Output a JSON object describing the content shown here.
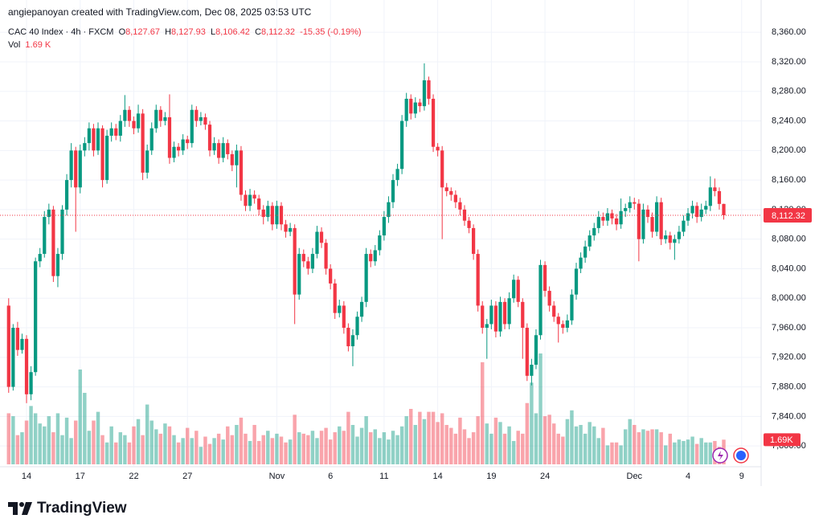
{
  "attribution": "angiepanoyan created with TradingView.com, Dec 08, 2025 03:53 UTC",
  "chart_data": {
    "type": "candlestick",
    "title": "CAC 40 Index · 4h · FXCM",
    "legend": {
      "open_key": "O",
      "open": "8,127.67",
      "high_key": "H",
      "high": "8,127.93",
      "low_key": "L",
      "low": "8,106.42",
      "close_key": "C",
      "close": "8,112.32",
      "change": "-15.35 (-0.19%)",
      "volume_key": "Vol",
      "volume": "1.69 K"
    },
    "up_color": "#089981",
    "down_color": "#f23645",
    "ohlc": [
      [
        7990,
        8000,
        7872,
        7880
      ],
      [
        7880,
        7965,
        7875,
        7960
      ],
      [
        7960,
        7968,
        7922,
        7930
      ],
      [
        7930,
        7952,
        7925,
        7945
      ],
      [
        7945,
        7950,
        7858,
        7870
      ],
      [
        7870,
        7908,
        7862,
        7900
      ],
      [
        7900,
        8055,
        7895,
        8050
      ],
      [
        8050,
        8068,
        8042,
        8060
      ],
      [
        8060,
        8118,
        8055,
        8110
      ],
      [
        8110,
        8128,
        8100,
        8120
      ],
      [
        8120,
        8125,
        8022,
        8030
      ],
      [
        8030,
        8068,
        8015,
        8060
      ],
      [
        8060,
        8126,
        8052,
        8120
      ],
      [
        8120,
        8168,
        8112,
        8160
      ],
      [
        8160,
        8210,
        8150,
        8200
      ],
      [
        8200,
        8205,
        8090,
        8150
      ],
      [
        8150,
        8208,
        8142,
        8200
      ],
      [
        8200,
        8218,
        8192,
        8210
      ],
      [
        8210,
        8238,
        8200,
        8230
      ],
      [
        8230,
        8236,
        8192,
        8200
      ],
      [
        8200,
        8238,
        8194,
        8230
      ],
      [
        8230,
        8234,
        8150,
        8160
      ],
      [
        8160,
        8228,
        8155,
        8220
      ],
      [
        8220,
        8238,
        8212,
        8230
      ],
      [
        8230,
        8236,
        8214,
        8220
      ],
      [
        8220,
        8248,
        8212,
        8240
      ],
      [
        8240,
        8275,
        8232,
        8255
      ],
      [
        8255,
        8260,
        8232,
        8240
      ],
      [
        8240,
        8246,
        8222,
        8230
      ],
      [
        8230,
        8262,
        8224,
        8250
      ],
      [
        8250,
        8256,
        8160,
        8170
      ],
      [
        8170,
        8208,
        8162,
        8200
      ],
      [
        8200,
        8238,
        8194,
        8230
      ],
      [
        8230,
        8262,
        8224,
        8255
      ],
      [
        8255,
        8260,
        8232,
        8240
      ],
      [
        8240,
        8252,
        8234,
        8245
      ],
      [
        8245,
        8276,
        8182,
        8190
      ],
      [
        8190,
        8212,
        8184,
        8205
      ],
      [
        8205,
        8210,
        8192,
        8200
      ],
      [
        8200,
        8222,
        8194,
        8215
      ],
      [
        8215,
        8220,
        8202,
        8210
      ],
      [
        8210,
        8262,
        8204,
        8255
      ],
      [
        8255,
        8260,
        8232,
        8240
      ],
      [
        8240,
        8252,
        8234,
        8245
      ],
      [
        8245,
        8250,
        8228,
        8235
      ],
      [
        8235,
        8240,
        8192,
        8200
      ],
      [
        8200,
        8218,
        8194,
        8210
      ],
      [
        8210,
        8215,
        8182,
        8190
      ],
      [
        8190,
        8218,
        8184,
        8210
      ],
      [
        8210,
        8215,
        8188,
        8195
      ],
      [
        8195,
        8200,
        8172,
        8180
      ],
      [
        8180,
        8208,
        8150,
        8200
      ],
      [
        8200,
        8206,
        8132,
        8140
      ],
      [
        8140,
        8146,
        8118,
        8125
      ],
      [
        8125,
        8148,
        8118,
        8140
      ],
      [
        8140,
        8146,
        8128,
        8135
      ],
      [
        8135,
        8140,
        8112,
        8120
      ],
      [
        8120,
        8126,
        8100,
        8110
      ],
      [
        8110,
        8132,
        8104,
        8125
      ],
      [
        8125,
        8130,
        8092,
        8100
      ],
      [
        8100,
        8132,
        8094,
        8125
      ],
      [
        8125,
        8130,
        8092,
        8100
      ],
      [
        8100,
        8106,
        8082,
        8090
      ],
      [
        8090,
        8102,
        8084,
        8095
      ],
      [
        8095,
        8100,
        7965,
        8005
      ],
      [
        8005,
        8068,
        7998,
        8060
      ],
      [
        8060,
        8066,
        8042,
        8050
      ],
      [
        8050,
        8056,
        8032,
        8040
      ],
      [
        8040,
        8068,
        8034,
        8060
      ],
      [
        8060,
        8098,
        8054,
        8090
      ],
      [
        8090,
        8096,
        8068,
        8075
      ],
      [
        8075,
        8080,
        8032,
        8040
      ],
      [
        8040,
        8046,
        8012,
        8020
      ],
      [
        8020,
        8026,
        7972,
        7980
      ],
      [
        7980,
        7998,
        7974,
        7990
      ],
      [
        7990,
        7996,
        7952,
        7960
      ],
      [
        7960,
        7966,
        7928,
        7935
      ],
      [
        7935,
        7958,
        7908,
        7950
      ],
      [
        7950,
        7982,
        7944,
        7975
      ],
      [
        7975,
        8002,
        7968,
        7995
      ],
      [
        7995,
        8068,
        7988,
        8060
      ],
      [
        8060,
        8066,
        8042,
        8050
      ],
      [
        8050,
        8072,
        8044,
        8065
      ],
      [
        8065,
        8092,
        8058,
        8085
      ],
      [
        8085,
        8118,
        8078,
        8110
      ],
      [
        8110,
        8138,
        8102,
        8130
      ],
      [
        8130,
        8168,
        8122,
        8160
      ],
      [
        8160,
        8182,
        8152,
        8175
      ],
      [
        8175,
        8248,
        8168,
        8240
      ],
      [
        8240,
        8278,
        8232,
        8270
      ],
      [
        8270,
        8276,
        8242,
        8250
      ],
      [
        8250,
        8272,
        8244,
        8265
      ],
      [
        8265,
        8270,
        8252,
        8260
      ],
      [
        8260,
        8318,
        8254,
        8295
      ],
      [
        8295,
        8300,
        8262,
        8270
      ],
      [
        8270,
        8276,
        8198,
        8205
      ],
      [
        8205,
        8210,
        8192,
        8200
      ],
      [
        8200,
        8206,
        8080,
        8150
      ],
      [
        8150,
        8156,
        8138,
        8145
      ],
      [
        8145,
        8150,
        8132,
        8140
      ],
      [
        8140,
        8146,
        8122,
        8130
      ],
      [
        8130,
        8136,
        8112,
        8120
      ],
      [
        8120,
        8126,
        8098,
        8105
      ],
      [
        8105,
        8110,
        8088,
        8095
      ],
      [
        8095,
        8100,
        8052,
        8060
      ],
      [
        8060,
        8066,
        7982,
        7990
      ],
      [
        7990,
        7996,
        7952,
        7960
      ],
      [
        7960,
        7972,
        7918,
        7965
      ],
      [
        7965,
        7998,
        7958,
        7990
      ],
      [
        7990,
        7996,
        7947,
        7955
      ],
      [
        7955,
        8002,
        7948,
        7995
      ],
      [
        7995,
        8000,
        7958,
        7965
      ],
      [
        7965,
        8008,
        7958,
        8000
      ],
      [
        8000,
        8032,
        7994,
        8025
      ],
      [
        8025,
        8030,
        7988,
        7995
      ],
      [
        7995,
        8000,
        7918,
        7960
      ],
      [
        7960,
        7966,
        7888,
        7895
      ],
      [
        7895,
        7918,
        7882,
        7910
      ],
      [
        7910,
        7958,
        7904,
        7950
      ],
      [
        7950,
        8052,
        7944,
        8045
      ],
      [
        8045,
        8050,
        8002,
        8010
      ],
      [
        8010,
        8016,
        7982,
        7990
      ],
      [
        7990,
        7996,
        7968,
        7975
      ],
      [
        7975,
        7980,
        7940,
        7965
      ],
      [
        7965,
        7970,
        7952,
        7960
      ],
      [
        7960,
        7978,
        7954,
        7970
      ],
      [
        7970,
        8012,
        7964,
        8005
      ],
      [
        8005,
        8048,
        7998,
        8040
      ],
      [
        8040,
        8062,
        8034,
        8055
      ],
      [
        8055,
        8078,
        8048,
        8070
      ],
      [
        8070,
        8092,
        8064,
        8085
      ],
      [
        8085,
        8102,
        8078,
        8095
      ],
      [
        8095,
        8118,
        8088,
        8110
      ],
      [
        8110,
        8116,
        8098,
        8105
      ],
      [
        8105,
        8122,
        8098,
        8115
      ],
      [
        8115,
        8120,
        8100,
        8108
      ],
      [
        8108,
        8114,
        8092,
        8100
      ],
      [
        8100,
        8135,
        8094,
        8118
      ],
      [
        8118,
        8128,
        8110,
        8122
      ],
      [
        8122,
        8138,
        8116,
        8130
      ],
      [
        8130,
        8136,
        8120,
        8128
      ],
      [
        8128,
        8134,
        8050,
        8080
      ],
      [
        8080,
        8128,
        8074,
        8120
      ],
      [
        8120,
        8126,
        8102,
        8110
      ],
      [
        8110,
        8116,
        8082,
        8090
      ],
      [
        8090,
        8138,
        8084,
        8130
      ],
      [
        8130,
        8136,
        8072,
        8080
      ],
      [
        8080,
        8092,
        8074,
        8085
      ],
      [
        8085,
        8090,
        8066,
        8075
      ],
      [
        8075,
        8086,
        8052,
        8080
      ],
      [
        8080,
        8098,
        8074,
        8090
      ],
      [
        8090,
        8112,
        8084,
        8105
      ],
      [
        8105,
        8122,
        8098,
        8115
      ],
      [
        8115,
        8132,
        8108,
        8125
      ],
      [
        8125,
        8130,
        8102,
        8110
      ],
      [
        8110,
        8128,
        8104,
        8120
      ],
      [
        8120,
        8132,
        8114,
        8125
      ],
      [
        8125,
        8165,
        8118,
        8150
      ],
      [
        8150,
        8162,
        8138,
        8145
      ],
      [
        8145,
        8150,
        8120,
        8127.67
      ],
      [
        8127.67,
        8127.93,
        8106.42,
        8112.32
      ]
    ],
    "volume": [
      3500,
      3300,
      2000,
      2200,
      3000,
      4000,
      3500,
      2800,
      2600,
      3300,
      2200,
      3500,
      2000,
      3200,
      1800,
      3000,
      6500,
      4900,
      2300,
      3000,
      3600,
      2000,
      1500,
      2600,
      1500,
      2200,
      2000,
      1500,
      2600,
      3100,
      2000,
      4100,
      3000,
      2400,
      2100,
      2800,
      2600,
      2000,
      1500,
      1800,
      2500,
      1800,
      2300,
      1200,
      1900,
      1400,
      1800,
      2100,
      1700,
      2600,
      2000,
      2700,
      3200,
      2100,
      1600,
      2700,
      1600,
      2000,
      2300,
      1800,
      2100,
      1900,
      1500,
      1700,
      3400,
      2200,
      2100,
      2000,
      2300,
      1800,
      2300,
      2500,
      1700,
      2200,
      2600,
      2300,
      3600,
      2700,
      1900,
      2500,
      3300,
      2200,
      2400,
      1800,
      2200,
      1700,
      2300,
      2000,
      2600,
      3300,
      3800,
      2700,
      3600,
      3100,
      3600,
      3600,
      2900,
      3500,
      2700,
      2500,
      2100,
      3200,
      2400,
      1800,
      2200,
      3300,
      7000,
      2800,
      2100,
      3200,
      2900,
      2100,
      2600,
      1600,
      2300,
      2100,
      4200,
      5600,
      3500,
      7600,
      3300,
      3400,
      2800,
      2100,
      1900,
      3100,
      3700,
      2600,
      2700,
      2100,
      2900,
      2600,
      1800,
      2500,
      1300,
      1500,
      1500,
      1300,
      2400,
      3100,
      2700,
      2200,
      2400,
      2300,
      2400,
      2400,
      2200,
      1300,
      2100,
      1500,
      1700,
      1600,
      1700,
      1900,
      1400,
      1800,
      1500,
      1500,
      1600,
      1200,
      1690
    ],
    "volume_badge": "1.69K",
    "last_price": {
      "value": 8112.32,
      "label": "8,112.32"
    },
    "ylim": [
      7773,
      8395
    ],
    "yticks": [
      {
        "value": 7800,
        "label": "7,800.00"
      },
      {
        "value": 7840,
        "label": "7,840.00"
      },
      {
        "value": 7880,
        "label": "7,880.00"
      },
      {
        "value": 7920,
        "label": "7,920.00"
      },
      {
        "value": 7960,
        "label": "7,960.00"
      },
      {
        "value": 8000,
        "label": "8,000.00"
      },
      {
        "value": 8040,
        "label": "8,040.00"
      },
      {
        "value": 8080,
        "label": "8,080.00"
      },
      {
        "value": 8120,
        "label": "8,120.00"
      },
      {
        "value": 8160,
        "label": "8,160.00"
      },
      {
        "value": 8200,
        "label": "8,200.00"
      },
      {
        "value": 8240,
        "label": "8,240.00"
      },
      {
        "value": 8280,
        "label": "8,280.00"
      },
      {
        "value": 8320,
        "label": "8,320.00"
      },
      {
        "value": 8360,
        "label": "8,360.00"
      }
    ],
    "xlim": [
      -0.5,
      168
    ],
    "xticks": [
      {
        "value": 4,
        "label": "14"
      },
      {
        "value": 16,
        "label": "17"
      },
      {
        "value": 28,
        "label": "22"
      },
      {
        "value": 40,
        "label": "27"
      },
      {
        "value": 60,
        "label": "Nov"
      },
      {
        "value": 72,
        "label": "6"
      },
      {
        "value": 84,
        "label": "11"
      },
      {
        "value": 96,
        "label": "14"
      },
      {
        "value": 108,
        "label": "19"
      },
      {
        "value": 120,
        "label": "24"
      },
      {
        "value": 140,
        "label": "Dec"
      },
      {
        "value": 152,
        "label": "4"
      },
      {
        "value": 164,
        "label": "9"
      }
    ],
    "grid": true
  },
  "footer": {
    "logo_text": "TradingView"
  }
}
